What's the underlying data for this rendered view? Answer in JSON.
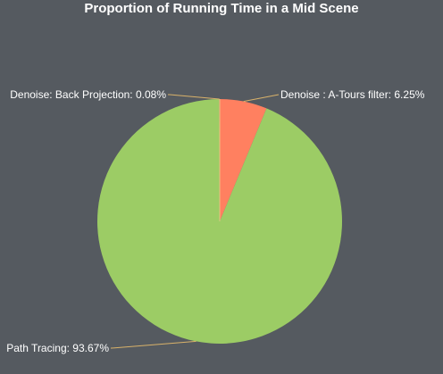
{
  "chart_data": {
    "type": "pie",
    "title": "Proportion of Running Time in a Mid Scene",
    "slices": [
      {
        "label": "Denoise : A-Tours filter",
        "value": 6.25,
        "display": "Denoise : A-Tours filter: 6.25%",
        "color": "#ff8060"
      },
      {
        "label": "Path Tracing",
        "value": 93.67,
        "display": "Path Tracing: 93.67%",
        "color": "#9ccc65"
      },
      {
        "label": "Denoise: Back Projection",
        "value": 0.08,
        "display": "Denoise: Back Projection: 0.08%",
        "color": "#f0b070"
      }
    ],
    "legend": "none",
    "label_line_color": "#d9b26a"
  }
}
